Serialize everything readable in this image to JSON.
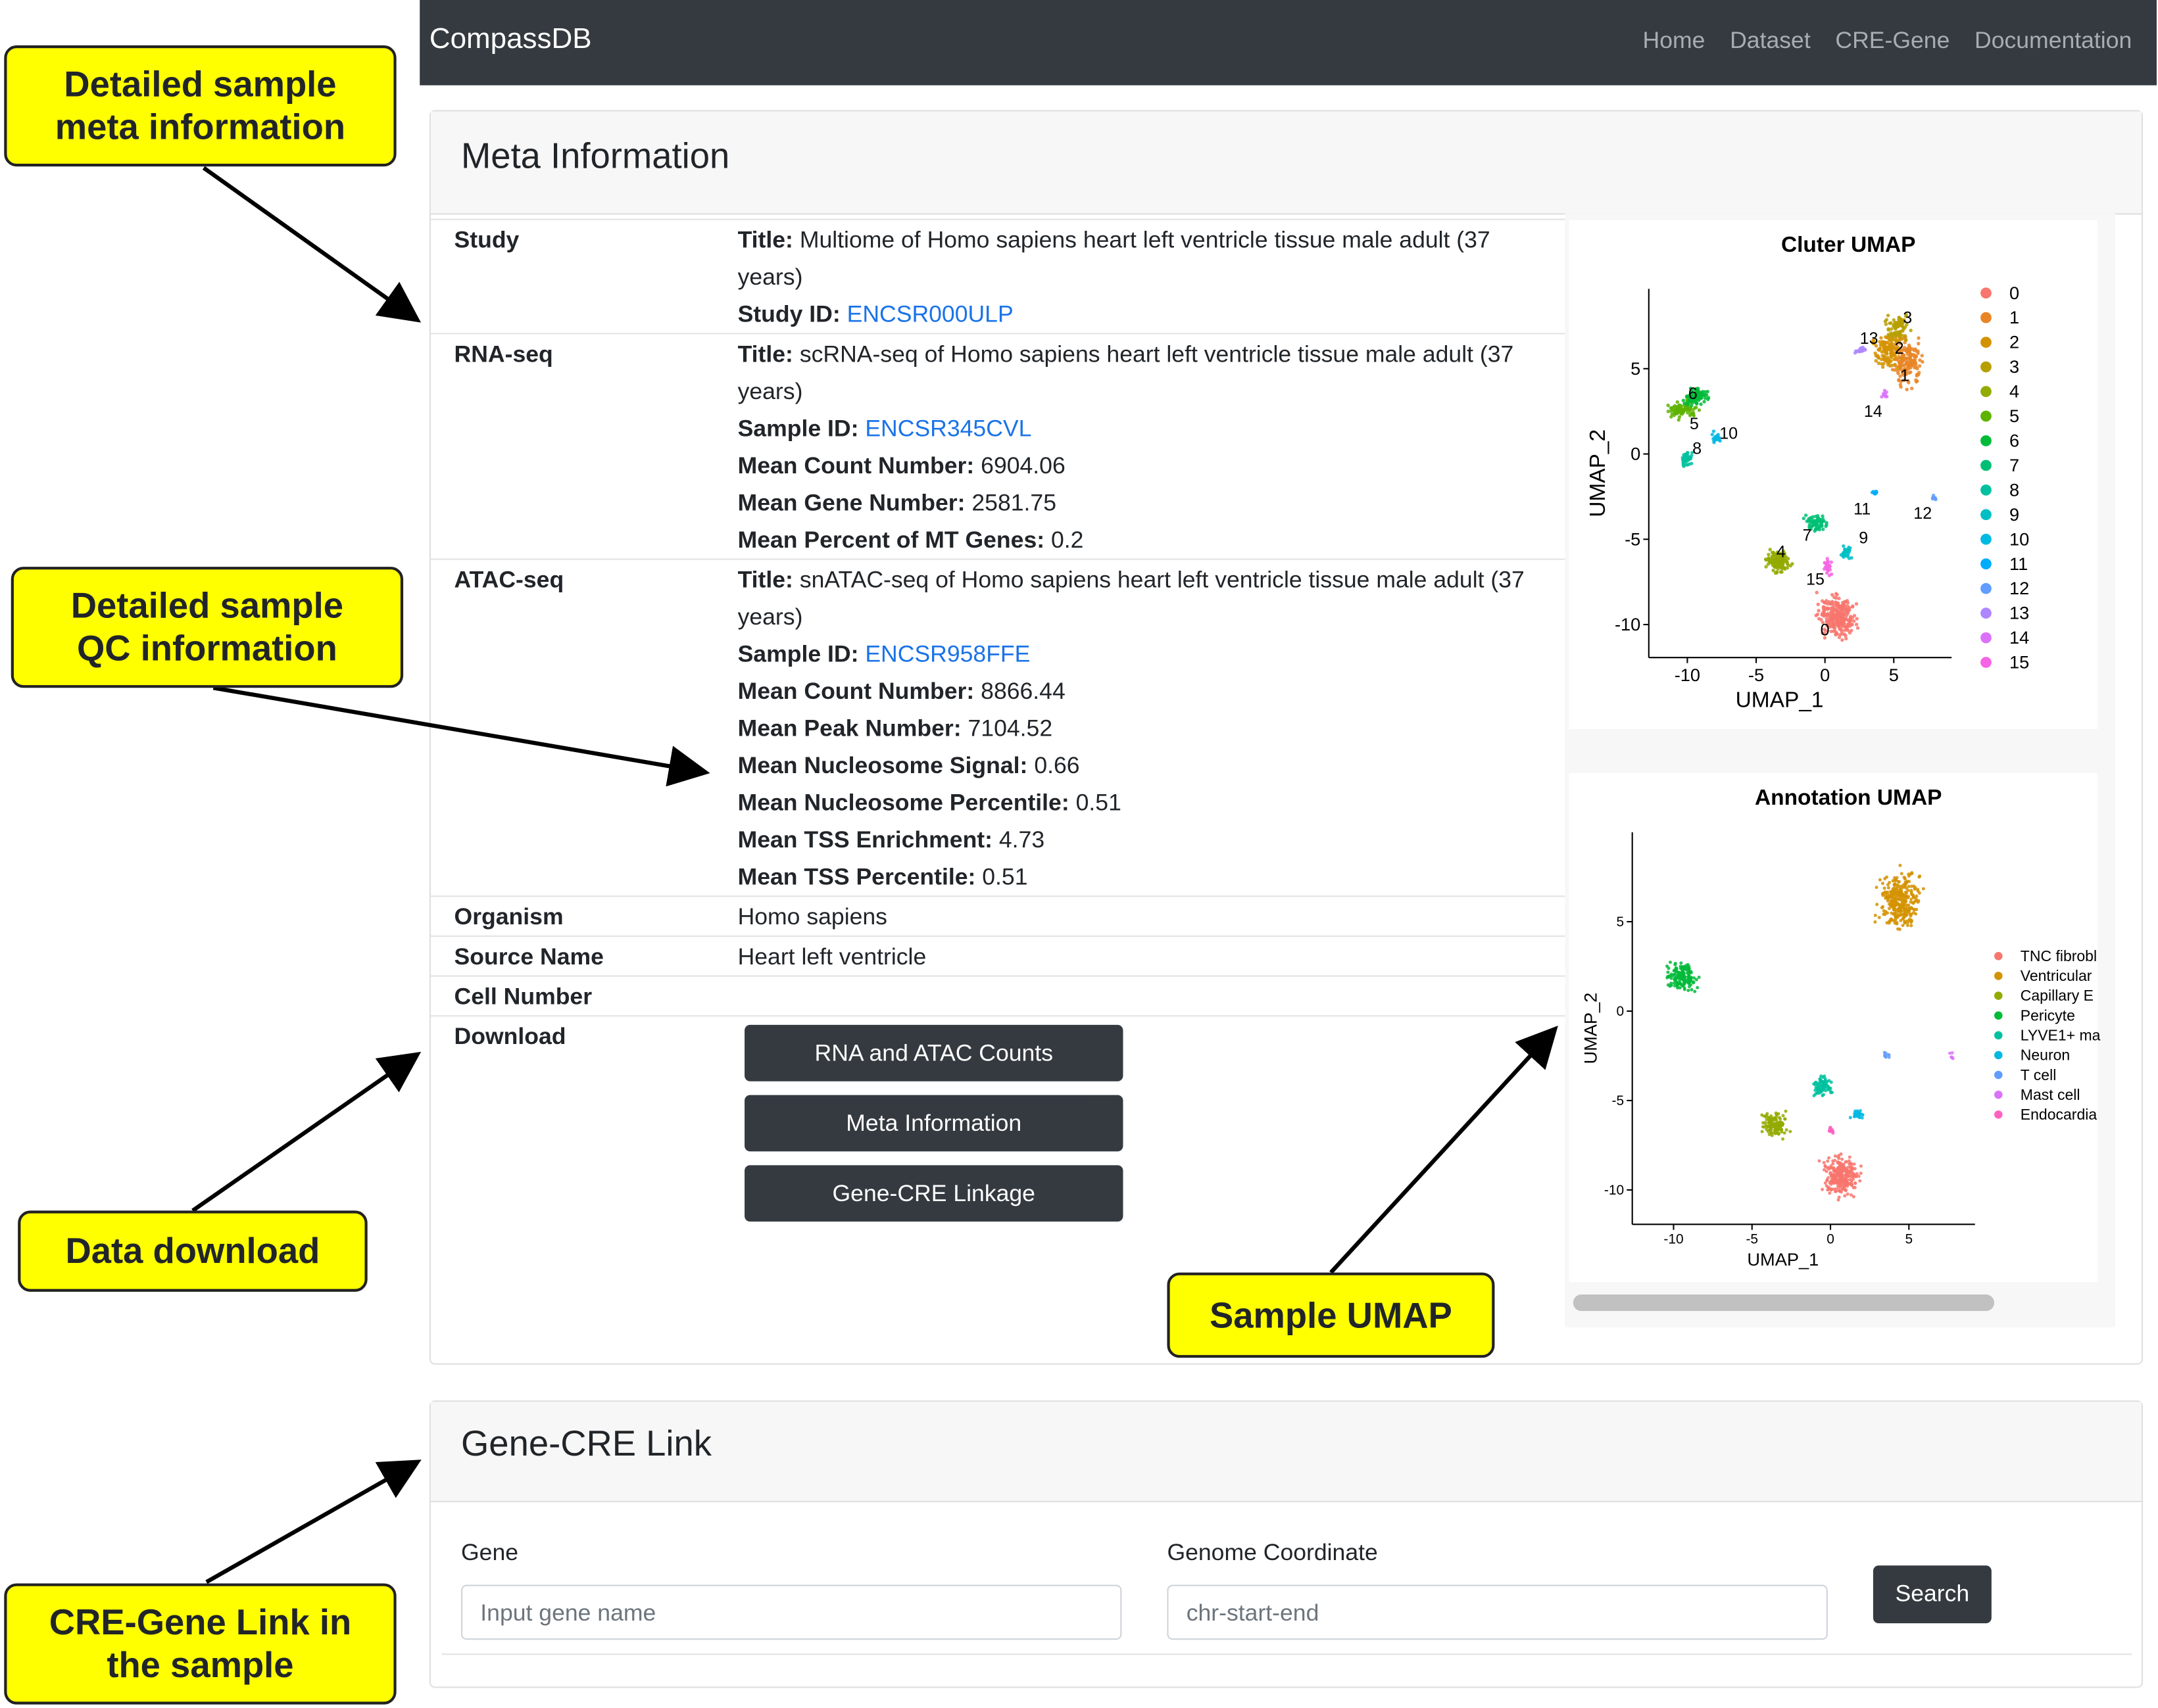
{
  "navbar": {
    "brand": "CompassDB",
    "links": [
      "Home",
      "Dataset",
      "CRE-Gene",
      "Documentation"
    ]
  },
  "meta": {
    "heading": "Meta Information",
    "rows": [
      {
        "label": "Study",
        "lines": [
          {
            "key": "Title:",
            "value": "Multiome of Homo sapiens heart left ventricle tissue male adult (37 years)"
          },
          {
            "key": "Study ID:",
            "value": "ENCSR000ULP",
            "link": true
          }
        ]
      },
      {
        "label": "RNA-seq",
        "lines": [
          {
            "key": "Title:",
            "value": "scRNA-seq of Homo sapiens heart left ventricle tissue male adult (37 years)"
          },
          {
            "key": "Sample ID:",
            "value": "ENCSR345CVL",
            "link": true
          },
          {
            "key": "Mean Count Number:",
            "value": "6904.06"
          },
          {
            "key": "Mean Gene Number:",
            "value": "2581.75"
          },
          {
            "key": "Mean Percent of MT Genes:",
            "value": "0.2"
          }
        ]
      },
      {
        "label": "ATAC-seq",
        "lines": [
          {
            "key": "Title:",
            "value": "snATAC-seq of Homo sapiens heart left ventricle tissue male adult (37 years)"
          },
          {
            "key": "Sample ID:",
            "value": "ENCSR958FFE",
            "link": true
          },
          {
            "key": "Mean Count Number:",
            "value": "8866.44"
          },
          {
            "key": "Mean Peak Number:",
            "value": "7104.52"
          },
          {
            "key": "Mean Nucleosome Signal:",
            "value": "0.66"
          },
          {
            "key": "Mean Nucleosome Percentile:",
            "value": "0.51"
          },
          {
            "key": "Mean TSS Enrichment:",
            "value": "4.73"
          },
          {
            "key": "Mean TSS Percentile:",
            "value": "0.51"
          }
        ]
      },
      {
        "label": "Organism",
        "text": "Homo sapiens"
      },
      {
        "label": "Source Name",
        "text": "Heart left ventricle"
      },
      {
        "label": "Cell Number",
        "text": ""
      },
      {
        "label": "Download",
        "buttons": [
          "RNA and ATAC Counts",
          "Meta Information",
          "Gene-CRE Linkage"
        ]
      }
    ]
  },
  "cluster_umap": {
    "title": "Cluter UMAP",
    "x_label": "UMAP_1",
    "y_label": "UMAP_2",
    "xticks": [
      "-10",
      "-5",
      "0",
      "5"
    ],
    "yticks": [
      "5",
      "0",
      "-5",
      "-10"
    ],
    "legend": [
      "0",
      "1",
      "2",
      "3",
      "4",
      "5",
      "6",
      "7",
      "8",
      "9",
      "10",
      "11",
      "12",
      "13",
      "14",
      "15"
    ]
  },
  "annotation_umap": {
    "title": "Annotation UMAP",
    "x_label": "UMAP_1",
    "y_label": "UMAP_2",
    "xticks": [
      "-10",
      "-5",
      "0",
      "5"
    ],
    "yticks": [
      "5",
      "0",
      "-5",
      "-10"
    ],
    "legend": [
      "TNC fibrobl",
      "Ventricular",
      "Capillary E",
      "Pericyte",
      "LYVE1+ ma",
      "Neuron",
      "T cell",
      "Mast cell",
      "Endocardia"
    ]
  },
  "callouts": [
    {
      "lines": [
        "Detailed sample",
        "meta information"
      ]
    },
    {
      "lines": [
        "Detailed sample",
        "QC information"
      ]
    },
    {
      "lines": [
        "Data download"
      ]
    },
    {
      "lines": [
        "Sample UMAP"
      ]
    },
    {
      "lines": [
        "CRE-Gene Link in",
        "the sample"
      ]
    }
  ],
  "gene_cre": {
    "heading": "Gene-CRE Link",
    "gene_label": "Gene",
    "gene_placeholder": "Input gene name",
    "coord_label": "Genome Coordinate",
    "coord_placeholder": "chr-start-end",
    "button": "Search"
  }
}
